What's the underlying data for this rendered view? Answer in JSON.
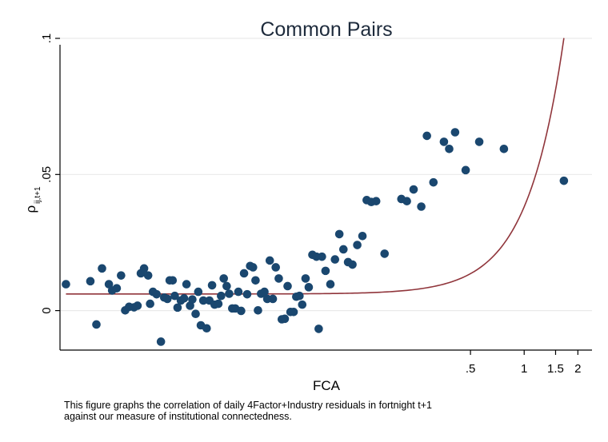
{
  "chart_data": {
    "type": "scatter",
    "title": "Common Pairs",
    "xlabel": "FCA",
    "ylabel": {
      "main": "ρ",
      "subscript": "ij,t+1"
    },
    "x_scale": "log",
    "xlim": [
      0.0025,
      2.4
    ],
    "ylim": [
      -0.0145,
      0.1
    ],
    "x_ticks": [
      {
        "value": 0.5,
        "label": ".5"
      },
      {
        "value": 1,
        "label": "1"
      },
      {
        "value": 1.5,
        "label": "1.5"
      },
      {
        "value": 2,
        "label": "2"
      }
    ],
    "y_ticks": [
      {
        "value": 0,
        "label": "0"
      },
      {
        "value": 0.05,
        "label": ".05"
      },
      {
        "value": 0.1,
        "label": ".1"
      }
    ],
    "grid": true,
    "colors": {
      "marker": "#1a476f",
      "fit_line": "#90353b",
      "grid": "#eaeaea"
    },
    "points": [
      {
        "x": 0.0027,
        "y": 0.0097
      },
      {
        "x": 0.0037,
        "y": 0.0108
      },
      {
        "x": 0.004,
        "y": -0.0051
      },
      {
        "x": 0.0043,
        "y": 0.0155
      },
      {
        "x": 0.0047,
        "y": 0.0097
      },
      {
        "x": 0.0049,
        "y": 0.0074
      },
      {
        "x": 0.0052,
        "y": 0.0082
      },
      {
        "x": 0.0055,
        "y": 0.0129
      },
      {
        "x": 0.0058,
        "y": 0.0001
      },
      {
        "x": 0.0061,
        "y": 0.0014
      },
      {
        "x": 0.0065,
        "y": 0.0012
      },
      {
        "x": 0.0068,
        "y": 0.0018
      },
      {
        "x": 0.0071,
        "y": 0.0137
      },
      {
        "x": 0.0074,
        "y": 0.0155
      },
      {
        "x": 0.0078,
        "y": 0.0129
      },
      {
        "x": 0.008,
        "y": 0.0025
      },
      {
        "x": 0.0083,
        "y": 0.0069
      },
      {
        "x": 0.0087,
        "y": 0.006
      },
      {
        "x": 0.0092,
        "y": -0.0114
      },
      {
        "x": 0.0096,
        "y": 0.0048
      },
      {
        "x": 0.01,
        "y": 0.0043
      },
      {
        "x": 0.0103,
        "y": 0.0111
      },
      {
        "x": 0.0107,
        "y": 0.0111
      },
      {
        "x": 0.011,
        "y": 0.0054
      },
      {
        "x": 0.0114,
        "y": 0.0011
      },
      {
        "x": 0.0119,
        "y": 0.0037
      },
      {
        "x": 0.0124,
        "y": 0.0045
      },
      {
        "x": 0.0128,
        "y": 0.0097
      },
      {
        "x": 0.0134,
        "y": 0.0018
      },
      {
        "x": 0.0138,
        "y": 0.0041
      },
      {
        "x": 0.0144,
        "y": -0.0012
      },
      {
        "x": 0.0149,
        "y": 0.0069
      },
      {
        "x": 0.0154,
        "y": -0.0054
      },
      {
        "x": 0.0159,
        "y": 0.0037
      },
      {
        "x": 0.0166,
        "y": -0.0065
      },
      {
        "x": 0.0172,
        "y": 0.0037
      },
      {
        "x": 0.0178,
        "y": 0.0093
      },
      {
        "x": 0.0184,
        "y": 0.0022
      },
      {
        "x": 0.0193,
        "y": 0.0025
      },
      {
        "x": 0.02,
        "y": 0.0054
      },
      {
        "x": 0.0207,
        "y": 0.0118
      },
      {
        "x": 0.0215,
        "y": 0.009
      },
      {
        "x": 0.0222,
        "y": 0.0062
      },
      {
        "x": 0.0231,
        "y": 0.0008
      },
      {
        "x": 0.024,
        "y": 0.0008
      },
      {
        "x": 0.025,
        "y": 0.0069
      },
      {
        "x": 0.0259,
        "y": -0.0001
      },
      {
        "x": 0.0269,
        "y": 0.0137
      },
      {
        "x": 0.028,
        "y": 0.006
      },
      {
        "x": 0.0291,
        "y": 0.0164
      },
      {
        "x": 0.0302,
        "y": 0.0159
      },
      {
        "x": 0.0312,
        "y": 0.0111
      },
      {
        "x": 0.0322,
        "y": 0.0001
      },
      {
        "x": 0.0335,
        "y": 0.0062
      },
      {
        "x": 0.035,
        "y": 0.0069
      },
      {
        "x": 0.0363,
        "y": 0.0043
      },
      {
        "x": 0.0375,
        "y": 0.0184
      },
      {
        "x": 0.039,
        "y": 0.0043
      },
      {
        "x": 0.0405,
        "y": 0.0159
      },
      {
        "x": 0.0421,
        "y": 0.0118
      },
      {
        "x": 0.0438,
        "y": -0.0032
      },
      {
        "x": 0.0455,
        "y": -0.003
      },
      {
        "x": 0.0472,
        "y": 0.009
      },
      {
        "x": 0.049,
        "y": -0.0005
      },
      {
        "x": 0.051,
        "y": -0.0005
      },
      {
        "x": 0.0528,
        "y": 0.0051
      },
      {
        "x": 0.055,
        "y": 0.0054
      },
      {
        "x": 0.057,
        "y": 0.0022
      },
      {
        "x": 0.0595,
        "y": 0.0118
      },
      {
        "x": 0.062,
        "y": 0.0086
      },
      {
        "x": 0.065,
        "y": 0.0205
      },
      {
        "x": 0.0685,
        "y": 0.0198
      },
      {
        "x": 0.0705,
        "y": -0.0067
      },
      {
        "x": 0.0735,
        "y": 0.0198
      },
      {
        "x": 0.077,
        "y": 0.0146
      },
      {
        "x": 0.082,
        "y": 0.0097
      },
      {
        "x": 0.087,
        "y": 0.0188
      },
      {
        "x": 0.092,
        "y": 0.0281
      },
      {
        "x": 0.097,
        "y": 0.0225
      },
      {
        "x": 0.103,
        "y": 0.0178
      },
      {
        "x": 0.109,
        "y": 0.0169
      },
      {
        "x": 0.116,
        "y": 0.0241
      },
      {
        "x": 0.124,
        "y": 0.0274
      },
      {
        "x": 0.131,
        "y": 0.0406
      },
      {
        "x": 0.139,
        "y": 0.0399
      },
      {
        "x": 0.148,
        "y": 0.0402
      },
      {
        "x": 0.165,
        "y": 0.0209
      },
      {
        "x": 0.205,
        "y": 0.041
      },
      {
        "x": 0.22,
        "y": 0.0402
      },
      {
        "x": 0.24,
        "y": 0.0445
      },
      {
        "x": 0.265,
        "y": 0.0382
      },
      {
        "x": 0.285,
        "y": 0.0642
      },
      {
        "x": 0.31,
        "y": 0.0471
      },
      {
        "x": 0.355,
        "y": 0.062
      },
      {
        "x": 0.38,
        "y": 0.0594
      },
      {
        "x": 0.41,
        "y": 0.0655
      },
      {
        "x": 0.47,
        "y": 0.0516
      },
      {
        "x": 0.56,
        "y": 0.062
      },
      {
        "x": 0.77,
        "y": 0.0594
      },
      {
        "x": 1.67,
        "y": 0.0477
      }
    ],
    "fit_line": {
      "a": 0.0061,
      "b": 0.094,
      "c": 2.1
    }
  },
  "caption": {
    "line1": "This figure graphs the correlation of daily 4Factor+Industry residuals in fortnight t+1",
    "line2": " against our measure of institutional connectedness."
  }
}
